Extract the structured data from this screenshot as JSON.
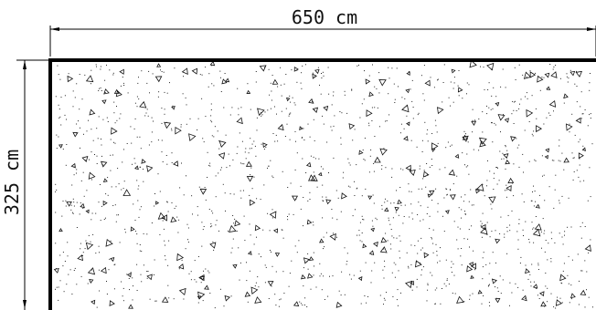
{
  "dimensions": {
    "width_label": "650 cm",
    "height_label": "325 cm"
  },
  "hatch": {
    "pattern": "concrete",
    "seed": 7,
    "triangle_count": 220,
    "dot_count": 1400
  },
  "colors": {
    "line": "#000000",
    "background": "#ffffff"
  }
}
